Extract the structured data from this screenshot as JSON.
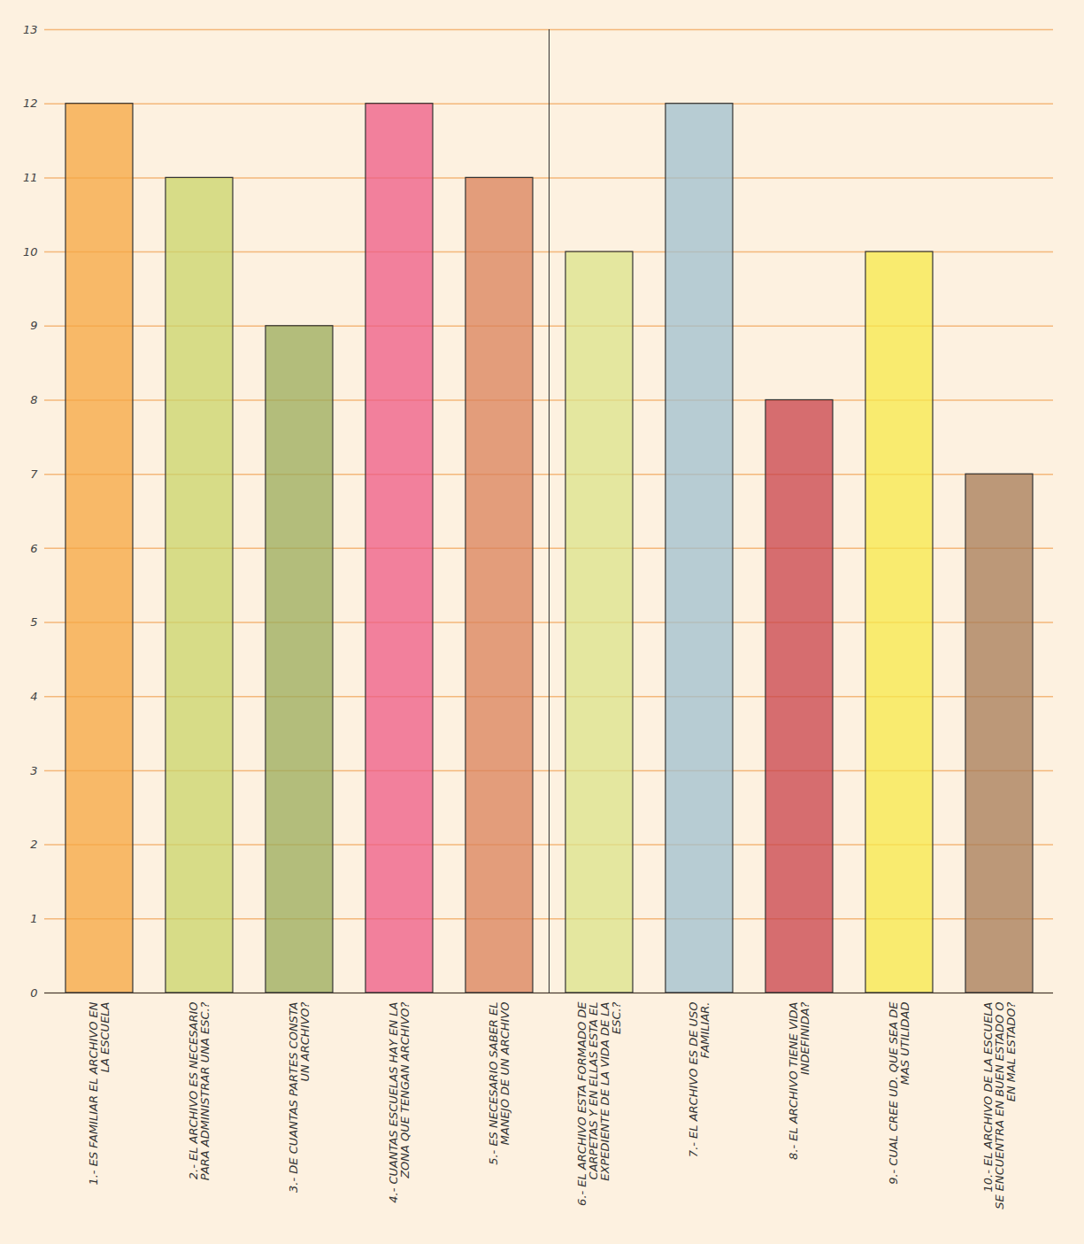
{
  "chart_data": {
    "type": "bar",
    "categories": [
      "1.- ES FAMILIAR EL ARCHIVO EN LA ESCUELA",
      "2.- EL ARCHIVO ES NECESARIO PARA ADMINISTRAR UNA ESC.?",
      "3.- DE CUANTAS PARTES CONSTA UN ARCHIVO?",
      "4.- CUANTAS ESCUELAS HAY EN LA ZONA QUE TENGAN ARCHIVO?",
      "5.- ES NECESARIO SABER EL MANEJO DE UN ARCHIVO",
      "6.- EL ARCHIVO ESTA FORMADO DE CARPETAS Y EN ELLAS ESTA EL EXPEDIENTE DE LA VIDA DE LA ESC.?",
      "7.- EL ARCHIVO ES DE USO FAMILIAR.",
      "8.- EL ARCHIVO TIENE VIDA INDEFINIDA?",
      "9.- CUAL CREE UD. QUE SEA DE MAS UTILIDAD",
      "10.- EL ARCHIVO DE LA ESCUELA SE ENCUENTRA EN BUEN ESTADO O EN MAL ESTADO?"
    ],
    "values": [
      12,
      11,
      9,
      12,
      11,
      10,
      12,
      8,
      10,
      7
    ],
    "colors": [
      "#f6a540",
      "#c9d46a",
      "#9aab5a",
      "#ee5a86",
      "#d9805a",
      "#dbe38a",
      "#9fbfcf",
      "#c8404a",
      "#f7e84a",
      "#a57a55"
    ],
    "ylim": [
      0,
      13
    ],
    "yticks": [
      0,
      1,
      2,
      3,
      4,
      5,
      6,
      7,
      8,
      9,
      10,
      11,
      12,
      13
    ],
    "grid": true
  }
}
